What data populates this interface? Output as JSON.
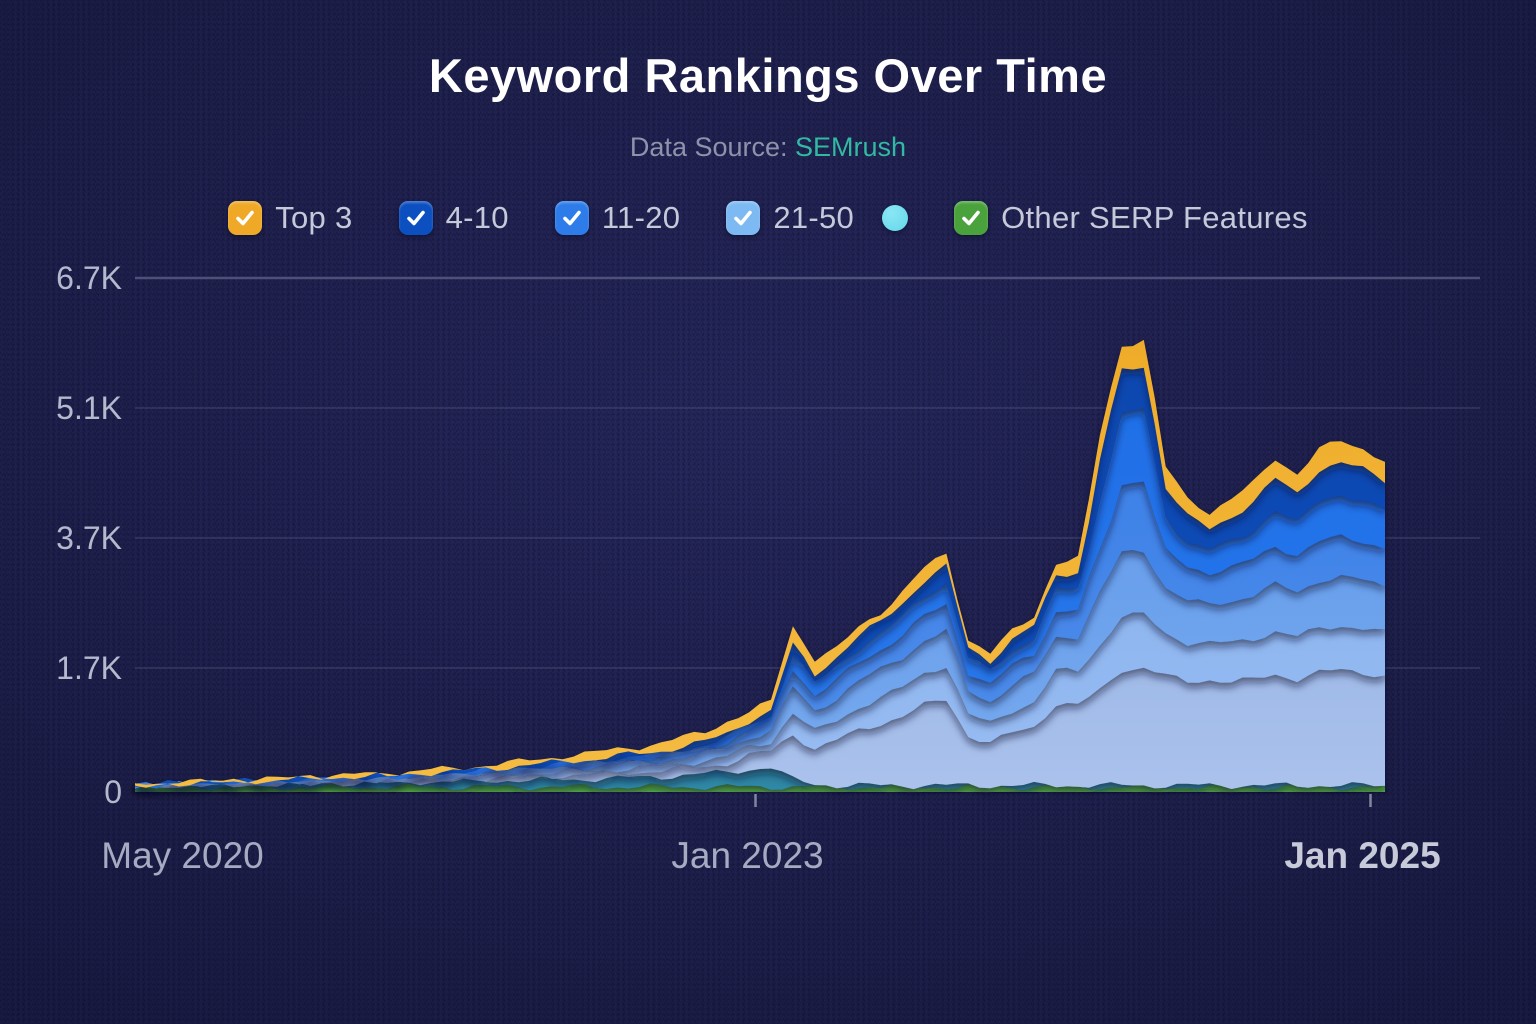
{
  "header": {
    "title": "Keyword Rankings Over Time",
    "subtitle_prefix": "Data Source: ",
    "subtitle_source": "SEMrush"
  },
  "colors": {
    "background": "#232457",
    "title_text": "#ffffff",
    "subtitle_text": "#8e93ac",
    "source_text": "#32b9a1",
    "legend_text": "#c6c9d9",
    "axis_text": "#b5b9ce",
    "grid_line": "#565a82"
  },
  "legend": {
    "items": [
      {
        "label": "Top 3",
        "marker": "checkbox",
        "color": "#f0a827",
        "checked": true
      },
      {
        "label": "4-10",
        "marker": "checkbox",
        "color": "#0b4fc0",
        "checked": true
      },
      {
        "label": "11-20",
        "marker": "checkbox",
        "color": "#2e7ce9",
        "checked": true
      },
      {
        "label": "21-50",
        "marker": "checkbox",
        "color": "#7db9f2",
        "checked": true
      },
      {
        "label": "",
        "marker": "dot",
        "color": "#63d8ea",
        "checked": false
      },
      {
        "label": "Other SERP Features",
        "marker": "checkbox",
        "color": "#4aa23c",
        "checked": true
      }
    ]
  },
  "chart_data": {
    "type": "area",
    "stacked": true,
    "title": "Keyword Rankings Over Time",
    "units": "keywords (thousands)",
    "grid": true,
    "legend_position": "top",
    "y_ticks": [
      {
        "label": "0",
        "value": 0
      },
      {
        "label": "1.7K",
        "value": 1.7
      },
      {
        "label": "3.7K",
        "value": 3.7
      },
      {
        "label": "5.1K",
        "value": 5.1
      },
      {
        "label": "6.7K",
        "value": 6.7
      }
    ],
    "x_ticks": [
      {
        "label": "May 2020",
        "t": 0.038,
        "bold": false
      },
      {
        "label": "Jan 2023",
        "t": 0.49,
        "bold": false
      },
      {
        "label": "Jan 2025",
        "t": 0.982,
        "bold": true
      }
    ],
    "x_range_note": "58 samples from May 2020 to just past Jan 2025",
    "ylim": [
      0,
      6.7
    ],
    "series": [
      {
        "name": "other-serp-features",
        "legend_label": "Other SERP Features",
        "color": "#449c36",
        "color2": "#5cbc49",
        "constant": 0.07
      },
      {
        "name": "unlabeled-cyan-series",
        "legend_label": "",
        "color": "#2b7e9b",
        "color2": "#2f8aa8",
        "values": [
          0.01,
          0.01,
          0.02,
          0.02,
          0.03,
          0.03,
          0.03,
          0.04,
          0.04,
          0.05,
          0.05,
          0.06,
          0.06,
          0.07,
          0.07,
          0.08,
          0.08,
          0.09,
          0.09,
          0.1,
          0.1,
          0.11,
          0.12,
          0.13,
          0.14,
          0.16,
          0.18,
          0.2,
          0.24,
          0.27,
          0.1,
          0.04,
          0.02,
          0.02,
          0.02,
          0.02,
          0.02,
          0.02,
          0.02,
          0.02,
          0.02,
          0.02,
          0.02,
          0.02,
          0.02,
          0.02,
          0.02,
          0.02,
          0.02,
          0.02,
          0.02,
          0.02,
          0.02,
          0.02,
          0.02,
          0.02,
          0.02,
          0.02
        ]
      },
      {
        "name": "21-50-band-low",
        "legend_label": "21-50",
        "color": "#a0bae8",
        "color2": "#aac2ec",
        "values": [
          0.0,
          0.01,
          0.01,
          0.01,
          0.01,
          0.01,
          0.01,
          0.02,
          0.02,
          0.02,
          0.02,
          0.02,
          0.02,
          0.03,
          0.03,
          0.03,
          0.04,
          0.04,
          0.05,
          0.05,
          0.06,
          0.06,
          0.07,
          0.07,
          0.08,
          0.09,
          0.1,
          0.12,
          0.19,
          0.22,
          0.62,
          0.48,
          0.62,
          0.75,
          0.85,
          0.95,
          1.1,
          1.18,
          0.68,
          0.58,
          0.72,
          0.8,
          1.12,
          1.1,
          1.3,
          1.59,
          1.61,
          1.5,
          1.42,
          1.45,
          1.42,
          1.45,
          1.52,
          1.46,
          1.55,
          1.58,
          1.55,
          1.5
        ]
      },
      {
        "name": "21-50-band-midlow",
        "legend_label": "21-50",
        "color": "#8fb6f0",
        "color2": "#98bcf2",
        "values": [
          0.0,
          0.0,
          0.01,
          0.01,
          0.01,
          0.01,
          0.01,
          0.01,
          0.01,
          0.01,
          0.02,
          0.02,
          0.02,
          0.02,
          0.02,
          0.03,
          0.03,
          0.03,
          0.04,
          0.04,
          0.05,
          0.05,
          0.05,
          0.06,
          0.06,
          0.07,
          0.08,
          0.1,
          0.11,
          0.13,
          0.3,
          0.24,
          0.27,
          0.32,
          0.35,
          0.39,
          0.44,
          0.47,
          0.29,
          0.27,
          0.31,
          0.34,
          0.45,
          0.47,
          0.66,
          0.81,
          0.82,
          0.64,
          0.58,
          0.54,
          0.58,
          0.61,
          0.65,
          0.63,
          0.67,
          0.68,
          0.67,
          0.65
        ]
      },
      {
        "name": "21-50-band-midhigh",
        "legend_label": "21-50",
        "color": "#699fec",
        "color2": "#76a9ee",
        "values": [
          0.0,
          0.01,
          0.01,
          0.01,
          0.01,
          0.01,
          0.01,
          0.01,
          0.02,
          0.02,
          0.02,
          0.02,
          0.02,
          0.03,
          0.03,
          0.03,
          0.04,
          0.04,
          0.05,
          0.05,
          0.06,
          0.06,
          0.07,
          0.07,
          0.08,
          0.09,
          0.1,
          0.12,
          0.13,
          0.15,
          0.35,
          0.28,
          0.31,
          0.36,
          0.39,
          0.44,
          0.49,
          0.53,
          0.33,
          0.3,
          0.35,
          0.39,
          0.51,
          0.53,
          0.8,
          0.98,
          0.99,
          0.7,
          0.64,
          0.6,
          0.64,
          0.67,
          0.72,
          0.69,
          0.74,
          0.75,
          0.74,
          0.72
        ]
      },
      {
        "name": "21-50-band-high",
        "legend_label": "21-50",
        "color": "#3f82e8",
        "color2": "#4e8dea",
        "values": [
          0.0,
          0.0,
          0.0,
          0.01,
          0.01,
          0.01,
          0.01,
          0.01,
          0.01,
          0.01,
          0.01,
          0.01,
          0.02,
          0.02,
          0.02,
          0.02,
          0.03,
          0.03,
          0.03,
          0.04,
          0.04,
          0.04,
          0.05,
          0.05,
          0.06,
          0.06,
          0.07,
          0.08,
          0.1,
          0.11,
          0.26,
          0.21,
          0.24,
          0.27,
          0.3,
          0.34,
          0.38,
          0.4,
          0.25,
          0.23,
          0.27,
          0.3,
          0.39,
          0.4,
          0.66,
          0.81,
          0.82,
          0.57,
          0.52,
          0.49,
          0.52,
          0.55,
          0.59,
          0.57,
          0.6,
          0.61,
          0.6,
          0.59
        ]
      },
      {
        "name": "11-20",
        "legend_label": "11-20",
        "color": "#1f6fe8",
        "color2": "#2a78ea",
        "values": [
          0.0,
          0.0,
          0.0,
          0.0,
          0.0,
          0.01,
          0.01,
          0.01,
          0.01,
          0.01,
          0.01,
          0.01,
          0.01,
          0.01,
          0.02,
          0.02,
          0.02,
          0.02,
          0.02,
          0.03,
          0.03,
          0.03,
          0.04,
          0.04,
          0.04,
          0.05,
          0.05,
          0.06,
          0.08,
          0.09,
          0.21,
          0.17,
          0.2,
          0.23,
          0.25,
          0.28,
          0.32,
          0.34,
          0.21,
          0.2,
          0.23,
          0.25,
          0.33,
          0.34,
          0.61,
          0.75,
          0.76,
          0.43,
          0.39,
          0.36,
          0.39,
          0.41,
          0.44,
          0.42,
          0.45,
          0.46,
          0.45,
          0.44
        ]
      },
      {
        "name": "4-10",
        "legend_label": "4-10",
        "color": "#0d47b0",
        "color2": "#1150bb",
        "values": [
          0.0,
          0.0,
          0.0,
          0.0,
          0.0,
          0.0,
          0.0,
          0.01,
          0.01,
          0.01,
          0.01,
          0.01,
          0.01,
          0.01,
          0.01,
          0.01,
          0.01,
          0.02,
          0.02,
          0.02,
          0.02,
          0.03,
          0.03,
          0.03,
          0.03,
          0.04,
          0.04,
          0.05,
          0.06,
          0.07,
          0.15,
          0.12,
          0.14,
          0.17,
          0.18,
          0.21,
          0.23,
          0.25,
          0.16,
          0.14,
          0.16,
          0.18,
          0.24,
          0.25,
          0.43,
          0.52,
          0.53,
          0.32,
          0.29,
          0.27,
          0.29,
          0.31,
          0.33,
          0.32,
          0.34,
          0.34,
          0.34,
          0.33
        ]
      },
      {
        "name": "top-3",
        "legend_label": "Top 3",
        "color": "#efac29",
        "color2": "#f5bc42",
        "values": [
          0.01,
          0.01,
          0.01,
          0.01,
          0.01,
          0.01,
          0.02,
          0.02,
          0.02,
          0.02,
          0.03,
          0.03,
          0.03,
          0.04,
          0.04,
          0.04,
          0.05,
          0.06,
          0.06,
          0.07,
          0.08,
          0.09,
          0.09,
          0.1,
          0.11,
          0.12,
          0.14,
          0.17,
          0.11,
          0.13,
          0.29,
          0.23,
          0.12,
          0.14,
          0.15,
          0.17,
          0.19,
          0.2,
          0.13,
          0.12,
          0.13,
          0.15,
          0.19,
          0.2,
          0.26,
          0.32,
          0.32,
          0.21,
          0.19,
          0.18,
          0.19,
          0.2,
          0.22,
          0.21,
          0.22,
          0.23,
          0.22,
          0.22
        ]
      }
    ]
  }
}
